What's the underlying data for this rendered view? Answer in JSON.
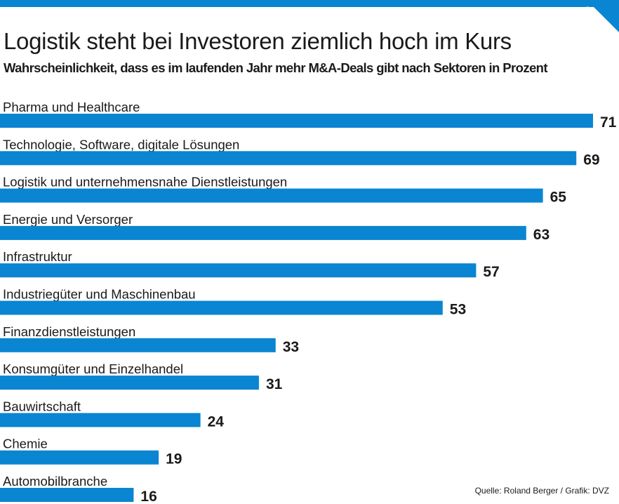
{
  "colors": {
    "accent": "#0a85d1",
    "text": "#1a1a1a"
  },
  "header": {
    "title": "Logistik steht bei Investoren ziemlich hoch im Kurs",
    "subtitle": "Wahrscheinlichkeit, dass es im laufenden Jahr mehr M&A-Deals gibt nach Sektoren in Prozent"
  },
  "source": "Quelle: Roland Berger / Grafik: DVZ",
  "chart_data": {
    "type": "bar",
    "orientation": "horizontal",
    "title": "Logistik steht bei Investoren ziemlich hoch im Kurs",
    "subtitle": "Wahrscheinlichkeit, dass es im laufenden Jahr mehr M&A-Deals gibt nach Sektoren in Prozent",
    "xlabel": "",
    "ylabel": "",
    "grid": false,
    "legend": "none",
    "categories": [
      "Pharma und Healthcare",
      "Technologie, Software, digitale Lösungen",
      "Logistik und unternehmensnahe Dienstleistungen",
      "Energie und Versorger",
      "Infrastruktur",
      "Industriegüter und Maschinenbau",
      "Finanzdienstleistungen",
      "Konsumgüter und Einzelhandel",
      "Bauwirtschaft",
      "Chemie",
      "Automobilbranche"
    ],
    "values": [
      71,
      69,
      65,
      63,
      57,
      53,
      33,
      31,
      24,
      19,
      16
    ],
    "value_labels": [
      "71",
      "69",
      "65",
      "63",
      "57",
      "53",
      "33",
      "31",
      "24",
      "19",
      "16"
    ]
  }
}
